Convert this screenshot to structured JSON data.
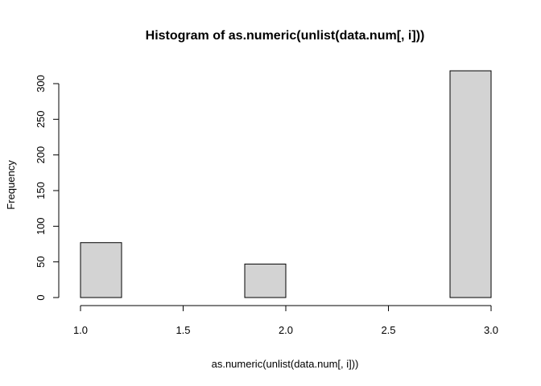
{
  "chart_data": {
    "type": "bar",
    "title": "Histogram of as.numeric(unlist(data.num[, i]))",
    "xlabel": "as.numeric(unlist(data.num[, i]))",
    "ylabel": "Frequency",
    "xlim": [
      1.0,
      3.0
    ],
    "ylim": [
      0,
      300
    ],
    "x_ticks": [
      "1.0",
      "1.5",
      "2.0",
      "2.5",
      "3.0"
    ],
    "y_ticks": [
      "0",
      "50",
      "100",
      "150",
      "200",
      "250",
      "300"
    ],
    "bins": [
      {
        "x0": 1.0,
        "x1": 1.2,
        "value": 77
      },
      {
        "x0": 1.2,
        "x1": 1.4,
        "value": 0
      },
      {
        "x0": 1.4,
        "x1": 1.6,
        "value": 0
      },
      {
        "x0": 1.6,
        "x1": 1.8,
        "value": 0
      },
      {
        "x0": 1.8,
        "x1": 2.0,
        "value": 47
      },
      {
        "x0": 2.0,
        "x1": 2.2,
        "value": 0
      },
      {
        "x0": 2.2,
        "x1": 2.4,
        "value": 0
      },
      {
        "x0": 2.4,
        "x1": 2.6,
        "value": 0
      },
      {
        "x0": 2.6,
        "x1": 2.8,
        "value": 0
      },
      {
        "x0": 2.8,
        "x1": 3.0,
        "value": 318
      }
    ],
    "bar_color": "#d3d3d3",
    "grid": false,
    "legend": "none"
  }
}
